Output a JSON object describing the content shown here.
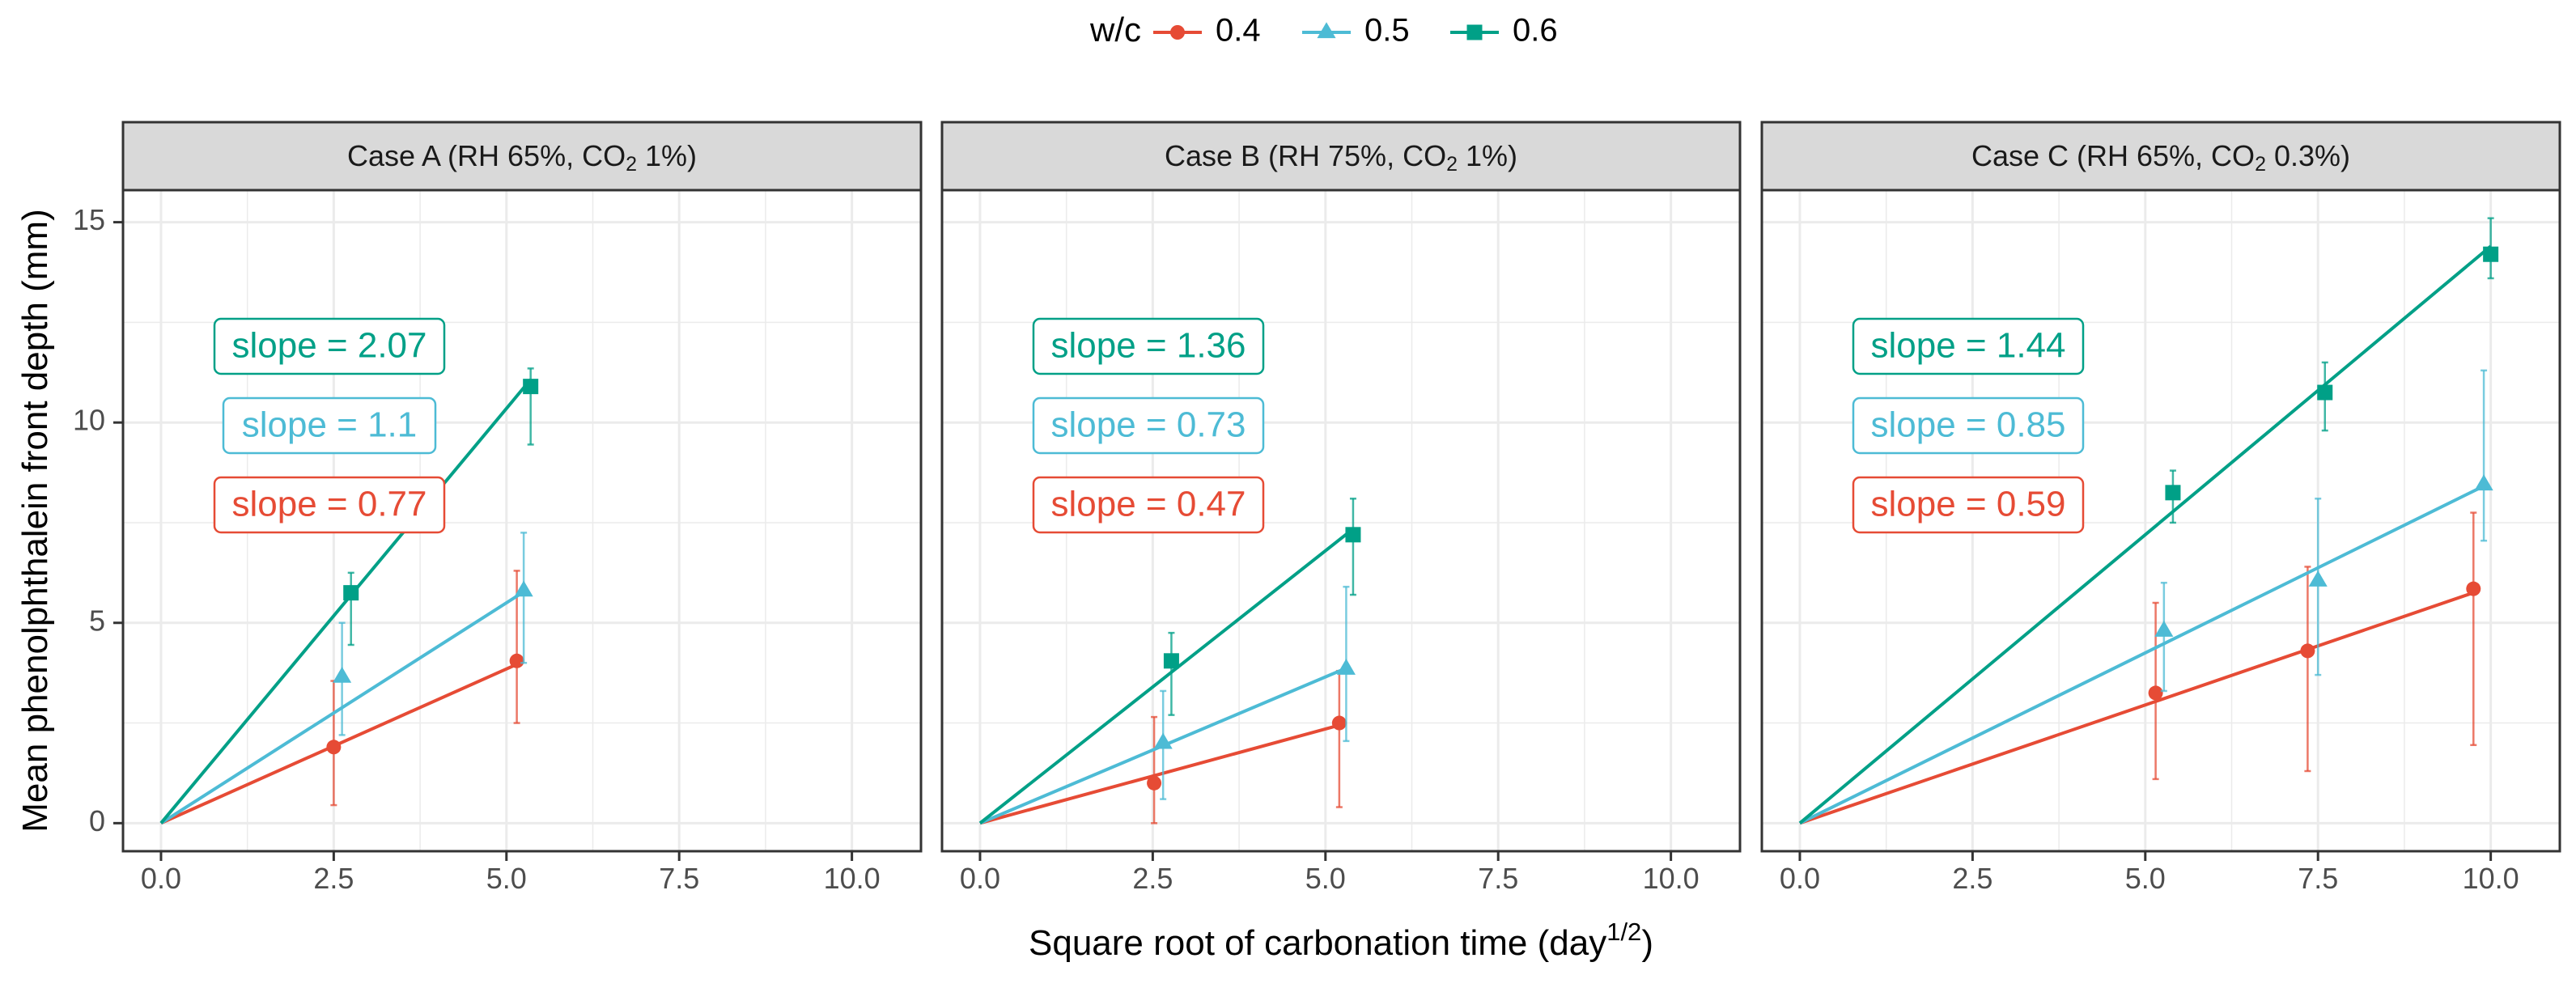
{
  "chart_data": {
    "type": "line",
    "ylabel": "Mean phenolphthalein front depth (mm)",
    "xlabel": {
      "text": "Square root of carbonation time (day",
      "superscript": "1/2",
      "suffix": ")"
    },
    "xlim": [
      -0.55,
      11.0
    ],
    "ylim": [
      -0.7,
      15.8
    ],
    "x_ticks": [
      0,
      2.5,
      5,
      7.5,
      10
    ],
    "x_tick_labels": [
      "0.0",
      "2.5",
      "5.0",
      "7.5",
      "10.0"
    ],
    "y_ticks": [
      0,
      5,
      10,
      15
    ],
    "y_tick_labels": [
      "0",
      "5",
      "10",
      "15"
    ],
    "legend": {
      "title": "w/c",
      "placement": "top",
      "entries": [
        {
          "label": "0.4",
          "color": "#E64B35",
          "marker": "circle"
        },
        {
          "label": "0.5",
          "color": "#4DBBD5",
          "marker": "triangle"
        },
        {
          "label": "0.6",
          "color": "#00A087",
          "marker": "square"
        }
      ]
    },
    "panels": [
      {
        "title": {
          "prefix": "Case A (RH 65%, CO",
          "sub": "2",
          "suffix": " 1%)"
        },
        "series": [
          {
            "wc": "0.4",
            "color": "#E64B35",
            "marker": "circle",
            "slope": 0.77,
            "slope_label": "slope = 0.77",
            "points": [
              {
                "x": 2.5,
                "y": 1.9,
                "lo": 0.45,
                "hi": 3.55
              },
              {
                "x": 5.15,
                "y": 4.05,
                "lo": 2.5,
                "hi": 6.3
              }
            ]
          },
          {
            "wc": "0.5",
            "color": "#4DBBD5",
            "marker": "triangle",
            "slope": 1.1,
            "slope_label": "slope = 1.1",
            "points": [
              {
                "x": 2.62,
                "y": 3.65,
                "lo": 2.2,
                "hi": 5.0
              },
              {
                "x": 5.25,
                "y": 5.8,
                "lo": 4.0,
                "hi": 7.25
              }
            ]
          },
          {
            "wc": "0.6",
            "color": "#00A087",
            "marker": "square",
            "slope": 2.07,
            "slope_label": "slope = 2.07",
            "points": [
              {
                "x": 2.75,
                "y": 5.75,
                "lo": 4.45,
                "hi": 6.25
              },
              {
                "x": 5.35,
                "y": 10.9,
                "lo": 9.45,
                "hi": 11.35
              }
            ]
          }
        ]
      },
      {
        "title": {
          "prefix": "Case B (RH 75%, CO",
          "sub": "2",
          "suffix": " 1%)"
        },
        "series": [
          {
            "wc": "0.4",
            "color": "#E64B35",
            "marker": "circle",
            "slope": 0.47,
            "slope_label": "slope = 0.47",
            "points": [
              {
                "x": 2.52,
                "y": 1.0,
                "lo": 0.0,
                "hi": 2.65
              },
              {
                "x": 5.2,
                "y": 2.5,
                "lo": 0.4,
                "hi": 3.8
              }
            ]
          },
          {
            "wc": "0.5",
            "color": "#4DBBD5",
            "marker": "triangle",
            "slope": 0.73,
            "slope_label": "slope = 0.73",
            "points": [
              {
                "x": 2.65,
                "y": 2.0,
                "lo": 0.6,
                "hi": 3.3
              },
              {
                "x": 5.3,
                "y": 3.85,
                "lo": 2.05,
                "hi": 5.9
              }
            ]
          },
          {
            "wc": "0.6",
            "color": "#00A087",
            "marker": "square",
            "slope": 1.36,
            "slope_label": "slope = 1.36",
            "points": [
              {
                "x": 2.77,
                "y": 4.05,
                "lo": 2.7,
                "hi": 4.75
              },
              {
                "x": 5.4,
                "y": 7.2,
                "lo": 5.7,
                "hi": 8.1
              }
            ]
          }
        ]
      },
      {
        "title": {
          "prefix": "Case C (RH 65%, CO",
          "sub": "2",
          "suffix": " 0.3%)"
        },
        "series": [
          {
            "wc": "0.4",
            "color": "#E64B35",
            "marker": "circle",
            "slope": 0.59,
            "slope_label": "slope = 0.59",
            "points": [
              {
                "x": 5.15,
                "y": 3.25,
                "lo": 1.1,
                "hi": 5.5
              },
              {
                "x": 7.35,
                "y": 4.3,
                "lo": 1.3,
                "hi": 6.4
              },
              {
                "x": 9.75,
                "y": 5.85,
                "lo": 1.95,
                "hi": 7.75
              }
            ]
          },
          {
            "wc": "0.5",
            "color": "#4DBBD5",
            "marker": "triangle",
            "slope": 0.85,
            "slope_label": "slope = 0.85",
            "points": [
              {
                "x": 5.27,
                "y": 4.8,
                "lo": 3.3,
                "hi": 6.0
              },
              {
                "x": 7.5,
                "y": 6.05,
                "lo": 3.7,
                "hi": 8.1
              },
              {
                "x": 9.9,
                "y": 8.45,
                "lo": 7.05,
                "hi": 11.3
              }
            ]
          },
          {
            "wc": "0.6",
            "color": "#00A087",
            "marker": "square",
            "slope": 1.44,
            "slope_label": "slope = 1.44",
            "points": [
              {
                "x": 5.4,
                "y": 8.25,
                "lo": 7.5,
                "hi": 8.8
              },
              {
                "x": 7.6,
                "y": 10.75,
                "lo": 9.8,
                "hi": 11.5
              },
              {
                "x": 10.0,
                "y": 14.2,
                "lo": 13.6,
                "hi": 15.1
              }
            ]
          }
        ]
      }
    ]
  }
}
